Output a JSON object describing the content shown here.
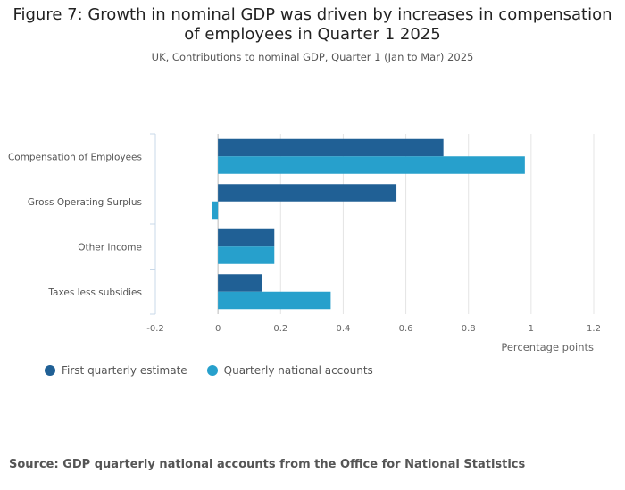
{
  "chart_data": {
    "type": "bar",
    "orientation": "horizontal",
    "title_line1": "Figure 7: Growth in nominal GDP was driven by increases in compensation",
    "title_line2": "of employees in Quarter 1 2025",
    "subtitle": "UK, Contributions to nominal GDP, Quarter 1 (Jan to Mar) 2025",
    "xlabel": "Percentage points",
    "xlim": [
      -0.2,
      1.2
    ],
    "xticks": [
      "-0.2",
      "0",
      "0.2",
      "0.4",
      "0.6",
      "0.8",
      "1",
      "1.2"
    ],
    "categories": [
      "Compensation of Employees",
      "Gross Operating Surplus",
      "Other Income",
      "Taxes less subsidies"
    ],
    "series": [
      {
        "name": "First quarterly estimate",
        "color": "#206095",
        "values": [
          0.72,
          0.57,
          0.18,
          0.14
        ]
      },
      {
        "name": "Quarterly national accounts",
        "color": "#27a0cc",
        "values": [
          0.98,
          -0.02,
          0.18,
          0.36
        ]
      }
    ],
    "grid": true,
    "legend_position": "bottom-left"
  },
  "source": "Source: GDP quarterly national accounts from the Office for National Statistics"
}
